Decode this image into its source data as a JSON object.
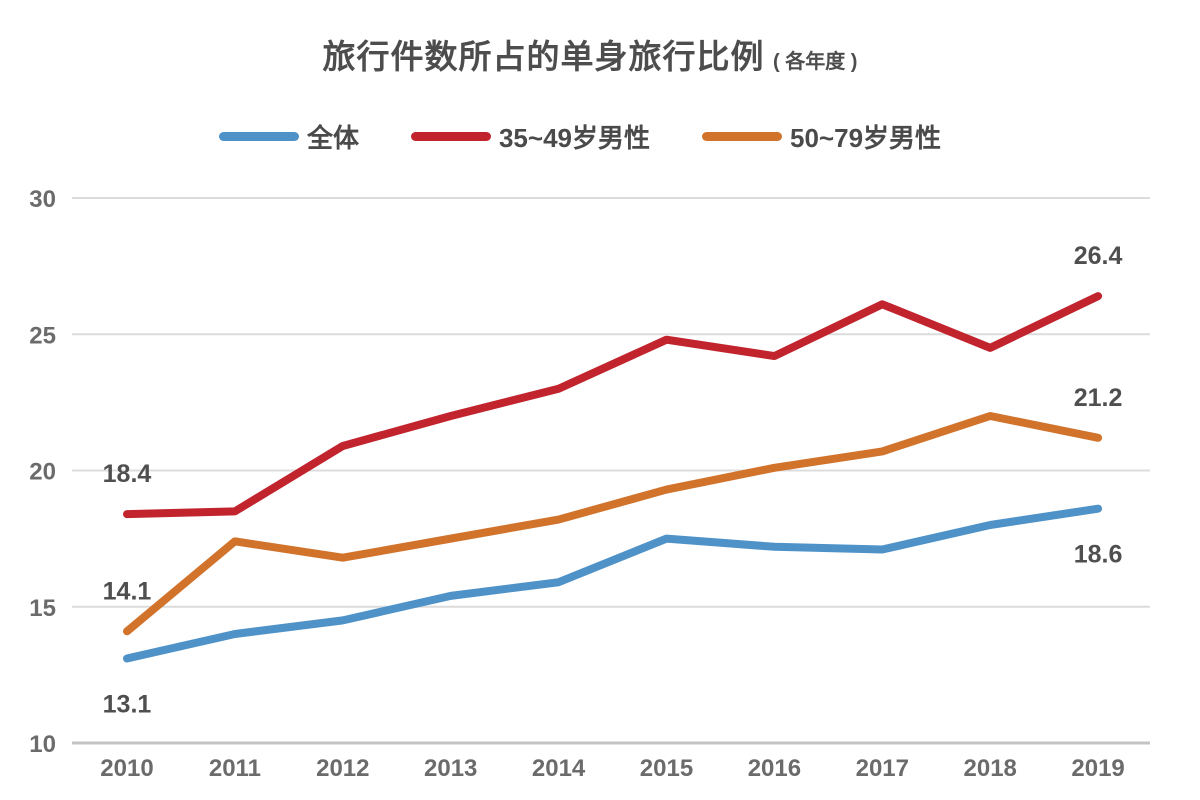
{
  "title": {
    "main": "旅行件数所占的单身旅行比例",
    "suffix": "( 各年度 )"
  },
  "chart_data": {
    "type": "line",
    "title": "旅行件数所占的单身旅行比例 ( 各年度 )",
    "x": [
      2010,
      2011,
      2012,
      2013,
      2014,
      2015,
      2016,
      2017,
      2018,
      2019
    ],
    "series": [
      {
        "name": "全体",
        "color": "#4e92c8",
        "values": [
          13.1,
          14.0,
          14.5,
          15.4,
          15.9,
          17.5,
          17.2,
          17.1,
          18.0,
          18.6
        ]
      },
      {
        "name": "35~49岁男性",
        "color": "#c2242e",
        "values": [
          18.4,
          18.5,
          20.9,
          22.0,
          23.0,
          24.8,
          24.2,
          26.1,
          24.5,
          26.4
        ]
      },
      {
        "name": "50~79岁男性",
        "color": "#d2732c",
        "values": [
          14.1,
          17.4,
          16.8,
          17.5,
          18.2,
          19.3,
          20.1,
          20.7,
          22.0,
          21.2
        ]
      }
    ],
    "ylim": [
      10,
      30
    ],
    "yticks": [
      10,
      15,
      20,
      25,
      30
    ],
    "grid": true,
    "legend_position": "top-center",
    "point_labels": [
      {
        "series": 1,
        "x": 2010,
        "text": "18.4",
        "place": "above"
      },
      {
        "series": 2,
        "x": 2010,
        "text": "14.1",
        "place": "above"
      },
      {
        "series": 0,
        "x": 2010,
        "text": "13.1",
        "place": "below"
      },
      {
        "series": 1,
        "x": 2019,
        "text": "26.4",
        "place": "above"
      },
      {
        "series": 2,
        "x": 2019,
        "text": "21.2",
        "place": "above"
      },
      {
        "series": 0,
        "x": 2019,
        "text": "18.6",
        "place": "below"
      }
    ],
    "colors": {
      "gridline": "#dcdcdc",
      "baseline": "#c4c4c4",
      "tick_text": "#6b6b6b",
      "label_text": "#4f4f4f"
    }
  }
}
